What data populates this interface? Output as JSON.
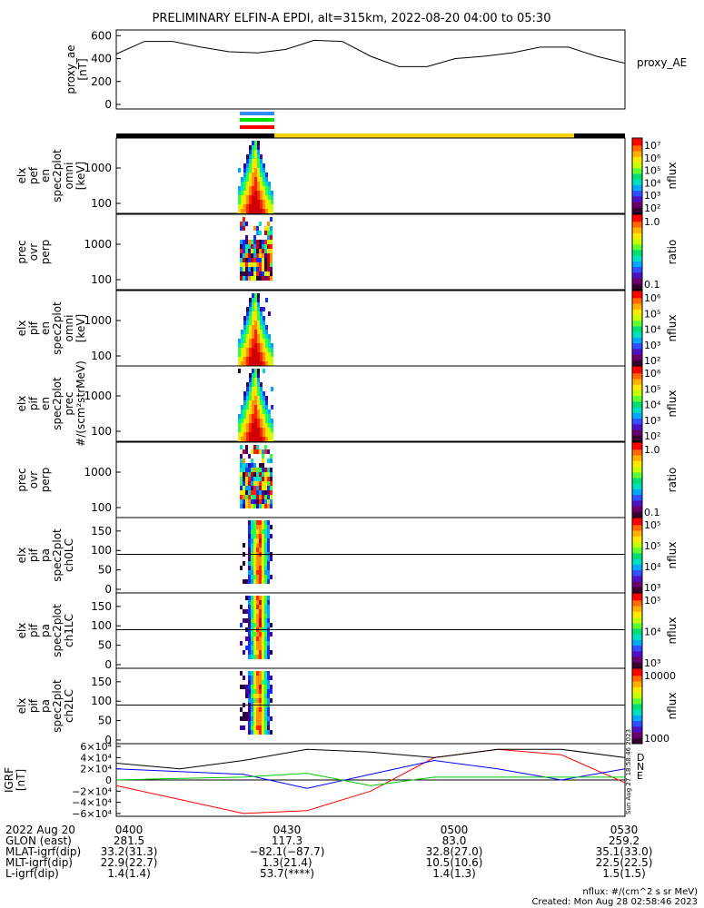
{
  "title": "PRELIMINARY ELFIN-A EPDI, alt=315km, 2022-08-20 04:00 to 05:30",
  "panels": [
    {
      "id": "ae",
      "ylabel": [
        "proxy_ae",
        "[nT]"
      ],
      "legend": "proxy_AE",
      "yticks": [
        "600",
        "400",
        "200",
        "0"
      ]
    },
    {
      "id": "perp",
      "ylabel": [
        "elx",
        "pef",
        "en",
        "spec2plot",
        "omni",
        "[keV]"
      ],
      "cbar_label": "nflux",
      "yticks": [
        "1000",
        "100"
      ],
      "cbar_ticks": [
        "10⁷",
        "10⁶",
        "10⁵",
        "10⁴",
        "10³",
        "10²"
      ]
    },
    {
      "id": "ratio1",
      "ylabel": [
        "prec",
        "ovr",
        "perp"
      ],
      "cbar_label": "ratio",
      "yticks": [
        "1000",
        "100"
      ],
      "cbar_ticks": [
        "1.0",
        "0.1"
      ]
    },
    {
      "id": "omni",
      "ylabel": [
        "elx",
        "pif",
        "en",
        "spec2plot",
        "omni",
        "[keV]"
      ],
      "cbar_label": "nflux",
      "yticks": [
        "1000",
        "100"
      ],
      "cbar_ticks": [
        "10⁶",
        "10⁵",
        "10⁴",
        "10³",
        "10²"
      ]
    },
    {
      "id": "prec",
      "ylabel": [
        "elx",
        "pif",
        "en",
        "spec2plot",
        "prec",
        "#/(scm²strMeV)"
      ],
      "cbar_label": "nflux",
      "yticks": [
        "1000",
        "100"
      ],
      "cbar_ticks": [
        "10⁶",
        "10⁵",
        "10⁴",
        "10³",
        "10²"
      ]
    },
    {
      "id": "ratio2",
      "ylabel": [
        "prec",
        "ovr",
        "perp"
      ],
      "cbar_label": "ratio",
      "yticks": [
        "1000",
        "100"
      ],
      "cbar_ticks": [
        "1.0",
        "0.1"
      ]
    },
    {
      "id": "pa0",
      "ylabel": [
        "elx",
        "pif",
        "pa",
        "spec2plot",
        "ch0LC"
      ],
      "cbar_label": "nflux",
      "yticks": [
        "150",
        "100",
        "50",
        "0"
      ],
      "cbar_ticks": [
        "10⁵",
        "10⁵",
        "10⁴",
        "10³"
      ]
    },
    {
      "id": "pa1",
      "ylabel": [
        "elx",
        "pif",
        "pa",
        "spec2plot",
        "ch1LC"
      ],
      "cbar_label": "nflux",
      "yticks": [
        "150",
        "100",
        "50",
        "0"
      ],
      "cbar_ticks": [
        "10⁵",
        "10⁴",
        "10³"
      ]
    },
    {
      "id": "pa2",
      "ylabel": [
        "elx",
        "pif",
        "pa",
        "spec2plot",
        "ch2LC"
      ],
      "cbar_label": "nflux",
      "yticks": [
        "150",
        "100",
        "50",
        "0"
      ],
      "cbar_ticks": [
        "10000",
        "1000"
      ]
    },
    {
      "id": "igrf",
      "ylabel": [
        "IGRF",
        "[nT]"
      ],
      "yticks": [
        "6×10⁴",
        "4×10⁴",
        "2×10⁴",
        "0",
        "−2×10⁴",
        "−4×10⁴",
        "−6×10⁴"
      ],
      "legend": [
        "D",
        "N",
        "E"
      ]
    }
  ],
  "footer": {
    "rows": [
      {
        "label": "2022 Aug 20",
        "values": [
          "0400",
          "0430",
          "0500",
          "0530"
        ]
      },
      {
        "label": "GLON (east)",
        "values": [
          "281.5",
          "117.3",
          "83.0",
          "259.2"
        ]
      },
      {
        "label": "MLAT-igrf(dip)",
        "values": [
          "33.2(31.3)",
          "−82.1(−87.7)",
          "32.8(27.0)",
          "35.1(33.0)"
        ]
      },
      {
        "label": "MLT-igrf(dip)",
        "values": [
          "22.9(22.7)",
          "1.3(21.4)",
          "10.5(10.6)",
          "22.5(22.5)"
        ]
      },
      {
        "label": "L-igrf(dip)",
        "values": [
          "1.4(1.4)",
          "53.7(****)",
          "1.4(1.3)",
          "1.5(1.5)"
        ]
      }
    ],
    "units_note": "nflux: #/(cm^2 s sr MeV)",
    "created": "Created: Mon Aug 28 02:58:46 2023",
    "side_stamp": "Sun Aug 27 18:58:46 2023"
  },
  "chart_data": {
    "type": "heatmap",
    "time_range": [
      "04:00",
      "05:30"
    ],
    "ae_series": {
      "t_min": [
        0,
        5,
        10,
        15,
        20,
        25,
        30,
        35,
        40,
        45,
        50,
        55,
        60,
        65,
        70,
        75,
        80,
        85,
        90
      ],
      "nT": [
        440,
        550,
        550,
        500,
        460,
        450,
        480,
        560,
        550,
        420,
        330,
        330,
        400,
        420,
        450,
        500,
        500,
        420,
        360
      ]
    },
    "igrf": {
      "D": [
        -10000,
        -35000,
        -60000,
        -55000,
        -20000,
        40000,
        55000,
        45000,
        -5000
      ],
      "N": [
        20000,
        15000,
        10000,
        -15000,
        10000,
        35000,
        20000,
        0,
        20000
      ],
      "E": [
        0,
        3000,
        5000,
        12000,
        -10000,
        5000,
        5000,
        5000,
        5000
      ],
      "Total": [
        30000,
        20000,
        35000,
        55000,
        50000,
        40000,
        55000,
        55000,
        40000
      ]
    },
    "colors": {
      "D": "#ff0000",
      "N": "#0000ff",
      "E": "#00c800",
      "Total": "#000000"
    }
  }
}
